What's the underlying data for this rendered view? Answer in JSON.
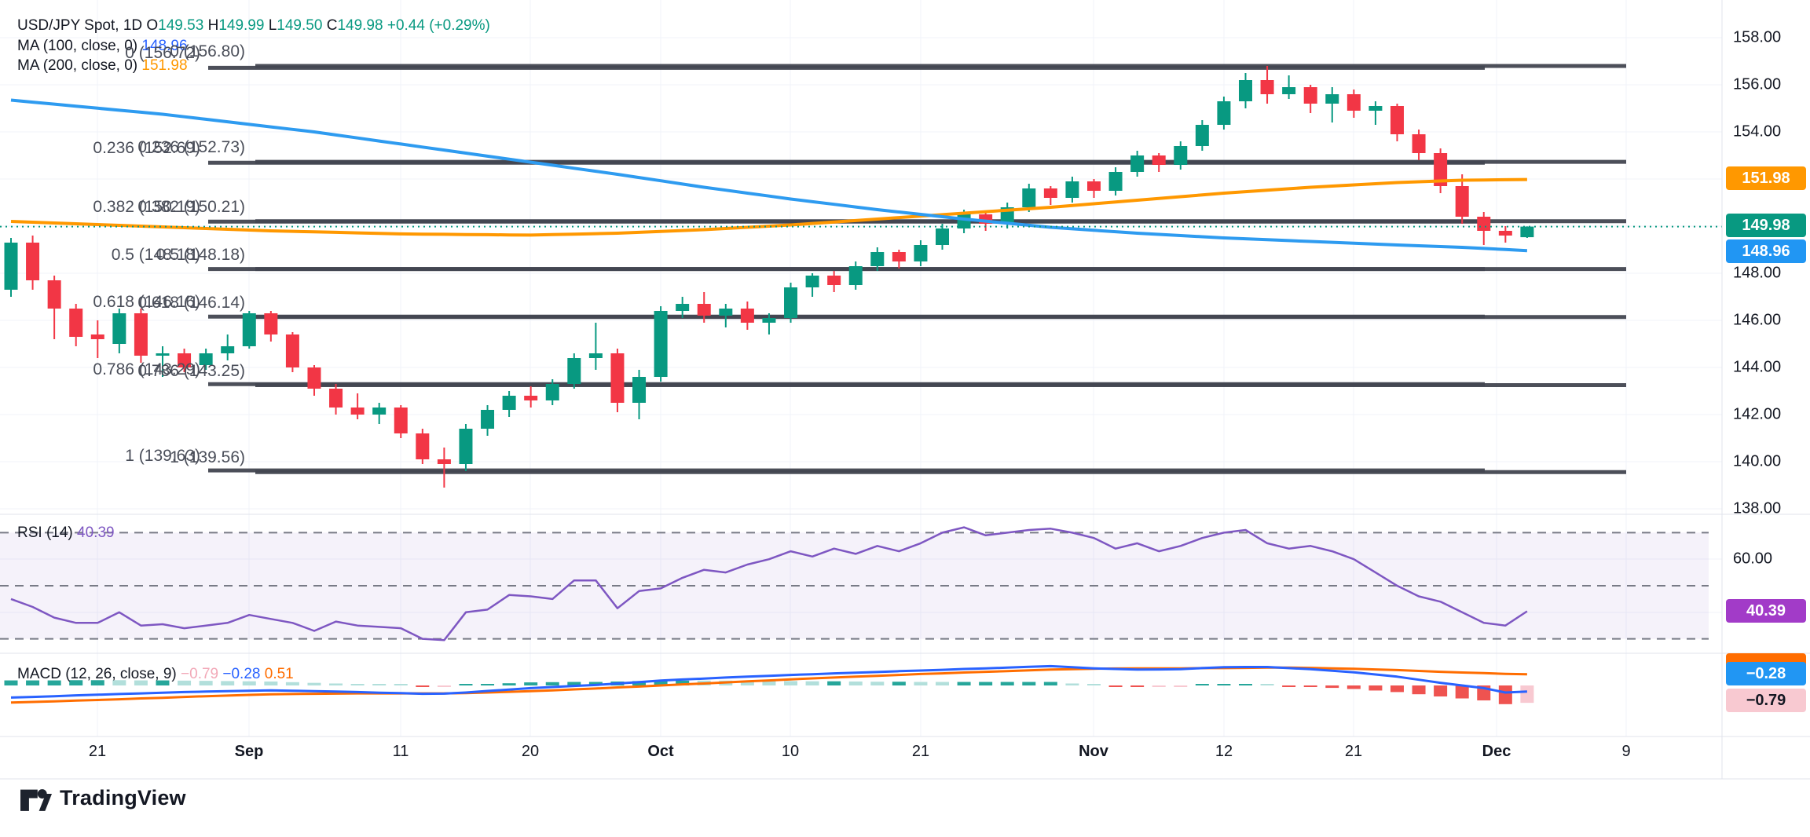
{
  "header": {
    "symbol": "USD/JPY Spot, 1D",
    "o_label": "O",
    "o": "149.53",
    "h_label": "H",
    "h": "149.99",
    "l_label": "L",
    "l": "149.50",
    "c_label": "C",
    "c": "149.98",
    "change": "+0.44 (+0.29%)",
    "ma100_label": "MA (100, close, 0)",
    "ma100_value": "148.96",
    "ma200_label": "MA (200, close, 0)",
    "ma200_value": "151.98"
  },
  "rsi_panel": {
    "legend": "RSI (14)",
    "value": "40.39",
    "axis_tick": "60.00",
    "badge": "40.39"
  },
  "macd_panel": {
    "legend": "MACD (12, 26, close, 9)",
    "hist_value": "−0.79",
    "macd_value": "−0.28",
    "signal_value": "0.51",
    "badge_macd": "−0.28",
    "badge_hist": "−0.79"
  },
  "price_axis": {
    "ticks": [
      {
        "label": "158.00",
        "price": 158
      },
      {
        "label": "156.00",
        "price": 156
      },
      {
        "label": "154.00",
        "price": 154
      },
      {
        "label": "148.00",
        "price": 148
      },
      {
        "label": "146.00",
        "price": 146
      },
      {
        "label": "144.00",
        "price": 144
      },
      {
        "label": "142.00",
        "price": 142
      },
      {
        "label": "140.00",
        "price": 140
      },
      {
        "label": "138.00",
        "price": 138
      }
    ],
    "badge_ma200": "151.98",
    "badge_close": "149.98",
    "badge_ma100": "148.96"
  },
  "time_axis": [
    {
      "label": "21",
      "bold": false
    },
    {
      "label": "Sep",
      "bold": true
    },
    {
      "label": "11",
      "bold": false
    },
    {
      "label": "20",
      "bold": false
    },
    {
      "label": "Oct",
      "bold": true
    },
    {
      "label": "10",
      "bold": false
    },
    {
      "label": "21",
      "bold": false
    },
    {
      "label": "Nov",
      "bold": true
    },
    {
      "label": "12",
      "bold": false
    },
    {
      "label": "21",
      "bold": false
    },
    {
      "label": "Dec",
      "bold": true
    },
    {
      "label": "9",
      "bold": false
    }
  ],
  "watermark": "TradingView",
  "colors": {
    "up": "#089981",
    "down": "#f23645",
    "ma100": "#2962ff",
    "ma200": "#ff9800",
    "fib_line": "#434651",
    "grid": "#f0f3fa",
    "separator": "#e0e3eb",
    "rsi_line": "#7e57c2",
    "rsi_band": "rgba(126,87,194,0.08)",
    "rsi_dash": "#787b86",
    "macd_line": "#2962ff",
    "signal_line": "#ff6d00",
    "hist_pos_strong": "#26a69a",
    "hist_pos_weak": "#b2dfdb",
    "hist_neg_strong": "#ef5350",
    "hist_neg_weak": "#f8c9d1",
    "badge_ma200_bg": "#ff9800",
    "badge_close_bg": "#089981",
    "badge_ma100_bg": "#2196f3",
    "badge_rsi_bg": "#a23bc8",
    "badge_macd_bg": "#2196f3",
    "badge_signal_bg": "#ff6d00",
    "badge_hist_bg": "#f8c9d1",
    "dotted_close": "#089981",
    "legend_pink": "#f2a9b8"
  },
  "chart_data": {
    "type": "candlestick",
    "title": "USD/JPY Spot, 1D",
    "ylabel": "price",
    "ylim": [
      137.8,
      158.4
    ],
    "fib_set_1": {
      "labels": [
        "0 (156.72)",
        "0.236 (152.69)",
        "0.382 (150.19)",
        "0.5 (148.18)",
        "0.618 (146.16)",
        "0.786 (143.29)",
        "1 (139.63)"
      ],
      "prices": [
        156.72,
        152.69,
        150.19,
        148.18,
        146.16,
        143.29,
        139.63
      ]
    },
    "fib_set_2": {
      "labels": [
        "0 (156.80)",
        "0.236 (152.73)",
        "0.382 (150.21)",
        "0.5 (148.18)",
        "0.618 (146.14)",
        "0.786 (143.25)",
        "1 (139.56)"
      ],
      "prices": [
        156.8,
        152.73,
        150.21,
        148.18,
        146.14,
        143.25,
        139.56
      ]
    },
    "current_close": 149.98,
    "ohlc": [
      [
        147.3,
        149.5,
        147.0,
        149.3
      ],
      [
        149.3,
        149.6,
        147.3,
        147.7
      ],
      [
        147.7,
        147.9,
        145.2,
        146.5
      ],
      [
        146.5,
        146.7,
        144.9,
        145.3
      ],
      [
        145.4,
        146.0,
        144.4,
        145.2
      ],
      [
        145.0,
        146.5,
        144.6,
        146.3
      ],
      [
        146.3,
        146.5,
        144.2,
        144.5
      ],
      [
        144.5,
        144.9,
        143.6,
        144.6
      ],
      [
        144.6,
        144.8,
        143.8,
        144.0
      ],
      [
        144.1,
        144.8,
        143.9,
        144.6
      ],
      [
        144.6,
        145.4,
        144.3,
        144.9
      ],
      [
        144.9,
        146.4,
        144.8,
        146.3
      ],
      [
        146.3,
        146.4,
        145.1,
        145.4
      ],
      [
        145.4,
        145.5,
        143.8,
        144.0
      ],
      [
        144.0,
        144.1,
        142.8,
        143.1
      ],
      [
        143.1,
        143.3,
        142.0,
        142.3
      ],
      [
        142.3,
        142.9,
        141.8,
        142.0
      ],
      [
        142.0,
        142.5,
        141.6,
        142.3
      ],
      [
        142.3,
        142.4,
        141.0,
        141.2
      ],
      [
        141.2,
        141.4,
        139.9,
        140.1
      ],
      [
        140.1,
        140.6,
        138.9,
        139.9
      ],
      [
        139.9,
        141.6,
        139.6,
        141.4
      ],
      [
        141.4,
        142.4,
        141.1,
        142.2
      ],
      [
        142.2,
        143.0,
        141.9,
        142.8
      ],
      [
        142.8,
        143.2,
        142.3,
        142.6
      ],
      [
        142.6,
        143.5,
        142.4,
        143.3
      ],
      [
        143.3,
        144.6,
        143.1,
        144.4
      ],
      [
        144.4,
        145.9,
        143.9,
        144.6
      ],
      [
        144.6,
        144.8,
        142.1,
        142.5
      ],
      [
        142.5,
        143.9,
        141.8,
        143.6
      ],
      [
        143.6,
        146.6,
        143.4,
        146.4
      ],
      [
        146.4,
        147.0,
        146.1,
        146.7
      ],
      [
        146.7,
        147.2,
        145.9,
        146.2
      ],
      [
        146.2,
        146.7,
        145.7,
        146.5
      ],
      [
        146.5,
        146.8,
        145.6,
        145.9
      ],
      [
        145.9,
        146.3,
        145.4,
        146.1
      ],
      [
        146.1,
        147.6,
        145.9,
        147.4
      ],
      [
        147.4,
        148.0,
        147.0,
        147.9
      ],
      [
        147.9,
        148.1,
        147.2,
        147.5
      ],
      [
        147.5,
        148.5,
        147.3,
        148.3
      ],
      [
        148.3,
        149.1,
        148.1,
        148.9
      ],
      [
        148.9,
        149.0,
        148.2,
        148.5
      ],
      [
        148.5,
        149.4,
        148.3,
        149.2
      ],
      [
        149.2,
        150.1,
        149.0,
        149.9
      ],
      [
        149.9,
        150.7,
        149.7,
        150.5
      ],
      [
        150.5,
        150.6,
        149.8,
        150.1
      ],
      [
        150.1,
        151.0,
        149.9,
        150.8
      ],
      [
        150.8,
        151.8,
        150.6,
        151.6
      ],
      [
        151.6,
        151.7,
        150.9,
        151.2
      ],
      [
        151.2,
        152.1,
        151.0,
        151.9
      ],
      [
        151.9,
        152.0,
        151.2,
        151.5
      ],
      [
        151.5,
        152.5,
        151.3,
        152.3
      ],
      [
        152.3,
        153.2,
        152.1,
        153.0
      ],
      [
        153.0,
        153.1,
        152.3,
        152.6
      ],
      [
        152.6,
        153.6,
        152.4,
        153.4
      ],
      [
        153.4,
        154.5,
        153.2,
        154.3
      ],
      [
        154.3,
        155.5,
        154.1,
        155.3
      ],
      [
        155.3,
        156.5,
        155.0,
        156.2
      ],
      [
        156.2,
        156.8,
        155.2,
        155.6
      ],
      [
        155.6,
        156.4,
        155.4,
        155.9
      ],
      [
        155.9,
        156.0,
        154.8,
        155.2
      ],
      [
        155.2,
        155.9,
        154.4,
        155.6
      ],
      [
        155.6,
        155.8,
        154.6,
        154.9
      ],
      [
        154.9,
        155.3,
        154.3,
        155.1
      ],
      [
        155.1,
        155.2,
        153.6,
        153.9
      ],
      [
        153.9,
        154.1,
        152.8,
        153.1
      ],
      [
        153.1,
        153.3,
        151.4,
        151.7
      ],
      [
        151.7,
        152.2,
        150.1,
        150.4
      ],
      [
        150.4,
        150.6,
        149.2,
        149.8
      ],
      [
        149.8,
        150.0,
        149.3,
        149.6
      ],
      [
        149.53,
        149.99,
        149.5,
        149.98
      ]
    ],
    "ma100_anchors": [
      [
        0,
        155.35
      ],
      [
        7,
        154.75
      ],
      [
        14,
        154.0
      ],
      [
        21,
        153.1
      ],
      [
        28,
        152.2
      ],
      [
        32,
        151.65
      ],
      [
        36,
        151.15
      ],
      [
        40,
        150.7
      ],
      [
        44,
        150.3
      ],
      [
        48,
        149.95
      ],
      [
        52,
        149.7
      ],
      [
        56,
        149.5
      ],
      [
        60,
        149.35
      ],
      [
        64,
        149.2
      ],
      [
        67,
        149.1
      ],
      [
        70,
        148.96
      ]
    ],
    "ma200_anchors": [
      [
        0,
        150.2
      ],
      [
        6,
        150.0
      ],
      [
        12,
        149.8
      ],
      [
        18,
        149.67
      ],
      [
        24,
        149.62
      ],
      [
        28,
        149.7
      ],
      [
        32,
        149.85
      ],
      [
        36,
        150.05
      ],
      [
        40,
        150.3
      ],
      [
        44,
        150.55
      ],
      [
        48,
        150.8
      ],
      [
        52,
        151.1
      ],
      [
        56,
        151.4
      ],
      [
        60,
        151.65
      ],
      [
        64,
        151.85
      ],
      [
        67,
        151.95
      ],
      [
        70,
        151.98
      ]
    ],
    "rsi": {
      "levels": [
        70,
        50,
        30
      ],
      "series": [
        45,
        42,
        38,
        36,
        36,
        40,
        35,
        35.5,
        34,
        35,
        36,
        39,
        37.5,
        36,
        33,
        36.5,
        35,
        34.5,
        34,
        30,
        29.5,
        40,
        41,
        46.5,
        46,
        45,
        52,
        52,
        41.5,
        48,
        49,
        53,
        56,
        55,
        58,
        60,
        63,
        61,
        64,
        62,
        65,
        63,
        66,
        70,
        72,
        69,
        70,
        71,
        71.5,
        70,
        68,
        64,
        66,
        63,
        65,
        68,
        70,
        71,
        66,
        64,
        65,
        63,
        60,
        55,
        50,
        46,
        44,
        40,
        36,
        35,
        40.39
      ]
    },
    "macd": {
      "macd_series": [
        -0.55,
        -0.52,
        -0.49,
        -0.45,
        -0.42,
        -0.39,
        -0.36,
        -0.33,
        -0.3,
        -0.28,
        -0.26,
        -0.24,
        -0.22,
        -0.24,
        -0.26,
        -0.28,
        -0.3,
        -0.33,
        -0.35,
        -0.38,
        -0.37,
        -0.32,
        -0.25,
        -0.19,
        -0.12,
        -0.07,
        -0.02,
        0.02,
        0.09,
        0.15,
        0.22,
        0.27,
        0.31,
        0.36,
        0.4,
        0.44,
        0.48,
        0.51,
        0.55,
        0.58,
        0.61,
        0.65,
        0.68,
        0.71,
        0.75,
        0.78,
        0.81,
        0.85,
        0.88,
        0.83,
        0.78,
        0.75,
        0.72,
        0.73,
        0.74,
        0.79,
        0.83,
        0.84,
        0.84,
        0.79,
        0.74,
        0.67,
        0.6,
        0.5,
        0.4,
        0.26,
        0.12,
        0.0,
        -0.12,
        -0.32,
        -0.28
      ],
      "signal_series": [
        -0.78,
        -0.75,
        -0.72,
        -0.69,
        -0.66,
        -0.63,
        -0.59,
        -0.56,
        -0.52,
        -0.49,
        -0.46,
        -0.43,
        -0.4,
        -0.39,
        -0.38,
        -0.37,
        -0.36,
        -0.36,
        -0.36,
        -0.36,
        -0.36,
        -0.35,
        -0.32,
        -0.29,
        -0.26,
        -0.22,
        -0.18,
        -0.14,
        -0.09,
        -0.05,
        0.0,
        0.05,
        0.09,
        0.14,
        0.19,
        0.23,
        0.28,
        0.32,
        0.36,
        0.4,
        0.44,
        0.48,
        0.52,
        0.55,
        0.59,
        0.62,
        0.65,
        0.69,
        0.72,
        0.74,
        0.76,
        0.77,
        0.78,
        0.78,
        0.78,
        0.79,
        0.79,
        0.8,
        0.81,
        0.81,
        0.8,
        0.78,
        0.76,
        0.73,
        0.7,
        0.66,
        0.62,
        0.59,
        0.56,
        0.53,
        0.51
      ]
    }
  }
}
